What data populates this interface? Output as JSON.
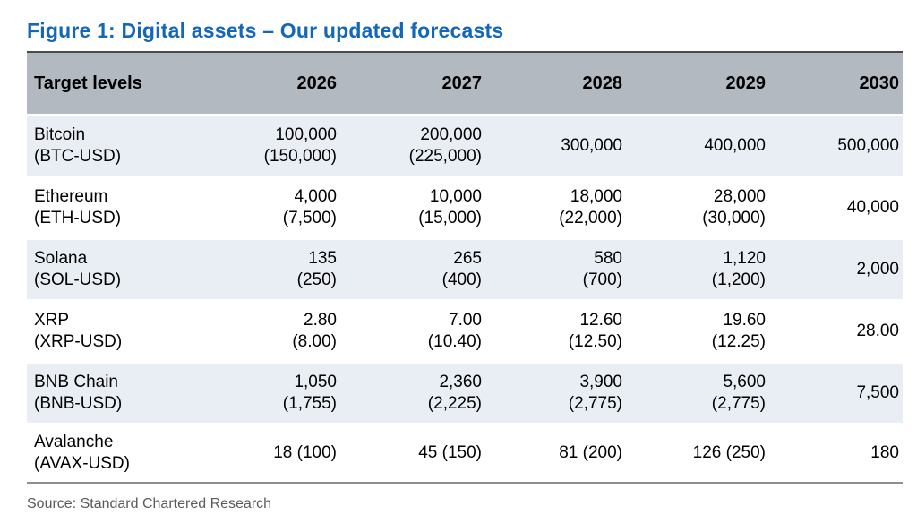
{
  "title": "Figure 1: Digital assets – Our updated forecasts",
  "source": "Source: Standard Chartered Research",
  "colors": {
    "title_blue": "#1467b8",
    "header_bg": "#b3b9c1",
    "row_shade_bg": "#e9eef5",
    "table_top_border": "#4a4a4a",
    "table_bottom_rule": "#8f8f8f",
    "source_text": "#5a5a5a"
  },
  "chart_data": {
    "type": "table",
    "columns": [
      "Target levels",
      "2026",
      "2027",
      "2028",
      "2029",
      "2030"
    ],
    "note_format": "main value with prior forecast in parentheses",
    "rows": [
      {
        "name": "Bitcoin",
        "ticker": "(BTC-USD)",
        "c1": {
          "main": "100,000",
          "sub": "(150,000)"
        },
        "c2": {
          "main": "200,000",
          "sub": "(225,000)"
        },
        "c3": {
          "main": "300,000"
        },
        "c4": {
          "main": "400,000"
        },
        "c5": {
          "main": "500,000"
        }
      },
      {
        "name": "Ethereum",
        "ticker": "(ETH-USD)",
        "c1": {
          "main": "4,000",
          "sub": "(7,500)"
        },
        "c2": {
          "main": "10,000",
          "sub": "(15,000)"
        },
        "c3": {
          "main": "18,000",
          "sub": "(22,000)"
        },
        "c4": {
          "main": "28,000",
          "sub": "(30,000)"
        },
        "c5": {
          "main": "40,000"
        }
      },
      {
        "name": "Solana",
        "ticker": "(SOL-USD)",
        "c1": {
          "main": "135",
          "sub": "(250)"
        },
        "c2": {
          "main": "265",
          "sub": "(400)"
        },
        "c3": {
          "main": "580",
          "sub": "(700)"
        },
        "c4": {
          "main": "1,120",
          "sub": "(1,200)"
        },
        "c5": {
          "main": "2,000"
        }
      },
      {
        "name": "XRP",
        "ticker": "(XRP-USD)",
        "c1": {
          "main": "2.80",
          "sub": "(8.00)"
        },
        "c2": {
          "main": "7.00",
          "sub": "(10.40)"
        },
        "c3": {
          "main": "12.60",
          "sub": "(12.50)"
        },
        "c4": {
          "main": "19.60",
          "sub": "(12.25)"
        },
        "c5": {
          "main": "28.00"
        }
      },
      {
        "name": "BNB Chain",
        "ticker": "(BNB-USD)",
        "c1": {
          "main": "1,050",
          "sub": "(1,755)"
        },
        "c2": {
          "main": "2,360",
          "sub": "(2,225)"
        },
        "c3": {
          "main": "3,900",
          "sub": "(2,775)"
        },
        "c4": {
          "main": "5,600",
          "sub": "(2,775)"
        },
        "c5": {
          "main": "7,500"
        }
      },
      {
        "name": "Avalanche",
        "ticker": "(AVAX-USD)",
        "c1": {
          "main": "18 (100)"
        },
        "c2": {
          "main": "45 (150)"
        },
        "c3": {
          "main": "81 (200)"
        },
        "c4": {
          "main": "126 (250)"
        },
        "c5": {
          "main": "180"
        }
      }
    ]
  }
}
